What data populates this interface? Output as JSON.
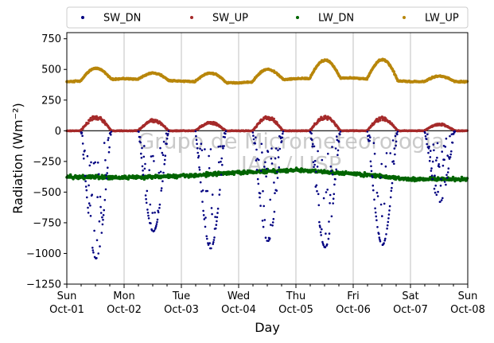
{
  "chart_data": {
    "type": "scatter",
    "xlabel": "Day",
    "ylabel": "Radiation (Wm⁻²)",
    "ylim": [
      -1250,
      800
    ],
    "yticks": [
      -1250,
      -1000,
      -750,
      -500,
      -250,
      0,
      250,
      500,
      750
    ],
    "xlim": [
      "2023-10-01T00:00",
      "2023-10-08T00:00"
    ],
    "xtick_labels": [
      [
        "Sun",
        "Oct-01"
      ],
      [
        "Mon",
        "Oct-02"
      ],
      [
        "Tue",
        "Oct-03"
      ],
      [
        "Wed",
        "Oct-04"
      ],
      [
        "Thu",
        "Oct-05"
      ],
      [
        "Fri",
        "Oct-06"
      ],
      [
        "Sat",
        "Oct-07"
      ],
      [
        "Sun",
        "Oct-08"
      ]
    ],
    "grid": "vertical",
    "zero_line": true,
    "legend": {
      "placement": "top, outside plot, 4 columns"
    },
    "watermark": [
      "Grupo de Micrometeorologia",
      "IAG / USP"
    ],
    "series": [
      {
        "name": "SW_DN",
        "color": "#000080",
        "note_values": "daytime only; approximate daily minima",
        "daily_min": [
          -1040,
          -820,
          -960,
          -900,
          -950,
          -930,
          -580
        ]
      },
      {
        "name": "SW_UP",
        "color": "#a52a2a",
        "daily_max": [
          125,
          95,
          75,
          120,
          125,
          115,
          60
        ]
      },
      {
        "name": "LW_DN",
        "color": "#006400",
        "daily_mean": [
          -375,
          -380,
          -370,
          -340,
          -320,
          -350,
          -395
        ]
      },
      {
        "name": "LW_UP",
        "color": "#b8860b",
        "night_baseline": [
          400,
          425,
          405,
          390,
          425,
          430,
          400
        ],
        "daily_max": [
          510,
          470,
          470,
          500,
          575,
          580,
          445
        ]
      }
    ]
  }
}
